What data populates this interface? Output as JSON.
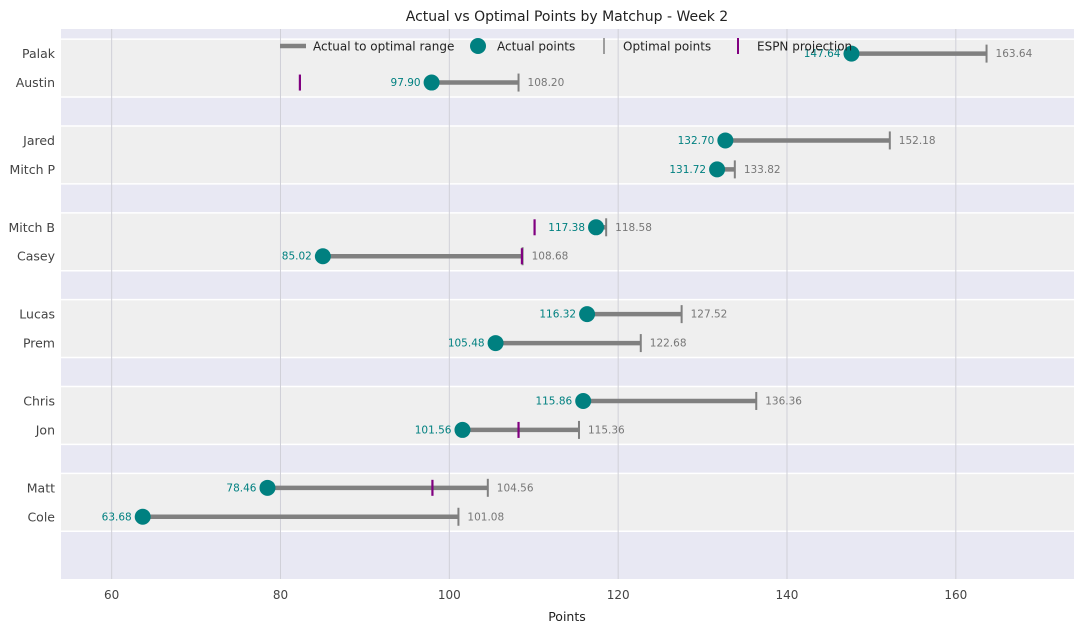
{
  "chart_data": {
    "type": "dumbbell",
    "title": "Actual vs Optimal Points by Matchup - Week 2",
    "xlabel": "Points",
    "xlim": [
      54,
      174
    ],
    "xticks": [
      60,
      80,
      100,
      120,
      140,
      160
    ],
    "grid": true,
    "legend_position": "top-center",
    "legend": [
      {
        "key": "range",
        "label": "Actual to optimal range"
      },
      {
        "key": "actual",
        "label": "Actual points"
      },
      {
        "key": "optimal",
        "label": "Optimal points"
      },
      {
        "key": "espn",
        "label": "ESPN projection"
      }
    ],
    "colors": {
      "actual": "#008080",
      "range": "#808080",
      "optimal": "#808080",
      "espn": "#800080",
      "band_light": "#efefef",
      "band_dark": "#e8e8f3"
    },
    "matchups": [
      {
        "teams": [
          {
            "name": "Palak",
            "actual": 147.64,
            "optimal": 163.64,
            "actual_label": "147.64",
            "optimal_label": "163.64"
          },
          {
            "name": "Austin",
            "actual": 97.9,
            "optimal": 108.2,
            "espn": 82.3,
            "actual_label": "97.90",
            "optimal_label": "108.20"
          }
        ]
      },
      {
        "teams": [
          {
            "name": "Jared",
            "actual": 132.7,
            "optimal": 152.18,
            "actual_label": "132.70",
            "optimal_label": "152.18"
          },
          {
            "name": "Mitch P",
            "actual": 131.72,
            "optimal": 133.82,
            "actual_label": "131.72",
            "optimal_label": "133.82"
          }
        ]
      },
      {
        "teams": [
          {
            "name": "Mitch B",
            "actual": 117.38,
            "optimal": 118.58,
            "espn": 110.1,
            "actual_label": "117.38",
            "optimal_label": "118.58"
          },
          {
            "name": "Casey",
            "actual": 85.02,
            "optimal": 108.68,
            "espn": 108.6,
            "actual_label": "85.02",
            "optimal_label": "108.68"
          }
        ]
      },
      {
        "teams": [
          {
            "name": "Lucas",
            "actual": 116.32,
            "optimal": 127.52,
            "actual_label": "116.32",
            "optimal_label": "127.52"
          },
          {
            "name": "Prem",
            "actual": 105.48,
            "optimal": 122.68,
            "actual_label": "105.48",
            "optimal_label": "122.68"
          }
        ]
      },
      {
        "teams": [
          {
            "name": "Chris",
            "actual": 115.86,
            "optimal": 136.36,
            "actual_label": "115.86",
            "optimal_label": "136.36"
          },
          {
            "name": "Jon",
            "actual": 101.56,
            "optimal": 115.36,
            "espn": 108.2,
            "actual_label": "101.56",
            "optimal_label": "115.36"
          }
        ]
      },
      {
        "teams": [
          {
            "name": "Matt",
            "actual": 78.46,
            "optimal": 104.56,
            "espn": 98.0,
            "actual_label": "78.46",
            "optimal_label": "104.56"
          },
          {
            "name": "Cole",
            "actual": 63.68,
            "optimal": 101.08,
            "actual_label": "63.68",
            "optimal_label": "101.08"
          }
        ]
      }
    ]
  }
}
